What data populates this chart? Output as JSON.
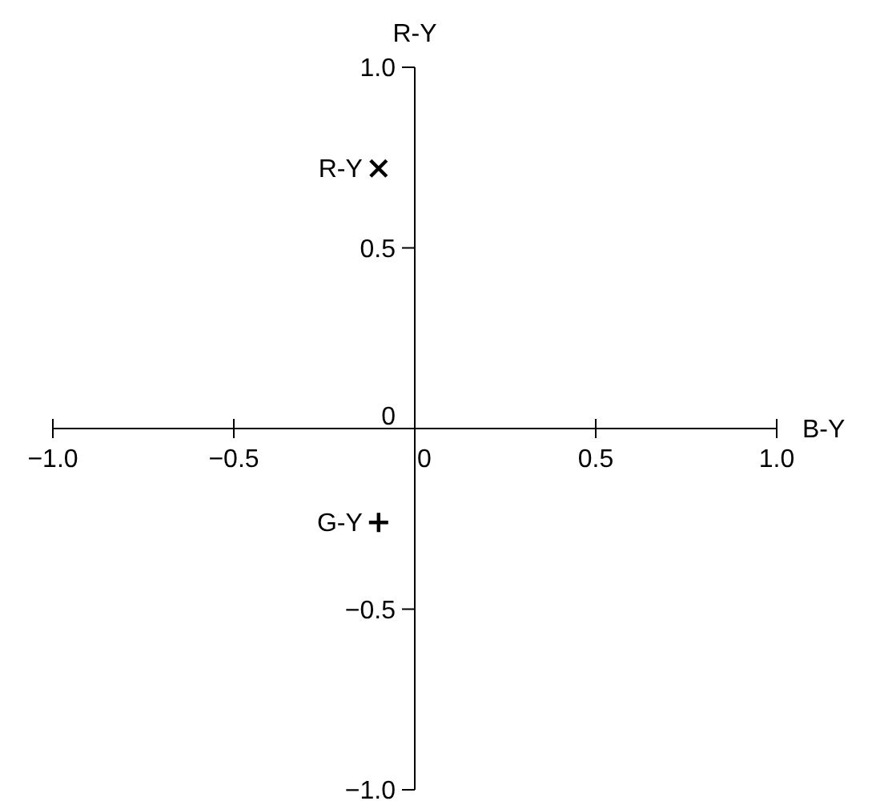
{
  "chart_data": {
    "type": "scatter",
    "xlabel": "B-Y",
    "ylabel": "R-Y",
    "xlim": [
      -1,
      1
    ],
    "ylim": [
      -1,
      1
    ],
    "xticks": [
      {
        "value": -1,
        "label": "−1.0"
      },
      {
        "value": -0.5,
        "label": "−0.5"
      },
      0,
      {
        "value": 0.5,
        "label": "0.5"
      },
      {
        "value": 1,
        "label": "1.0"
      }
    ],
    "yticks": [
      {
        "value": -1,
        "label": "−1.0"
      },
      {
        "value": -0.5,
        "label": "−0.5"
      },
      0,
      {
        "value": 0.5,
        "label": "0.5"
      },
      {
        "value": 1,
        "label": "1.0"
      }
    ],
    "grid": false,
    "series": [
      {
        "name": "R-Y",
        "color": "#000000",
        "marker": "x",
        "x": [
          -0.1
        ],
        "values": [
          0.72
        ]
      },
      {
        "name": "G-Y",
        "color": "#000000",
        "marker": "cross",
        "x": [
          -0.1
        ],
        "values": [
          -0.26
        ]
      }
    ]
  }
}
